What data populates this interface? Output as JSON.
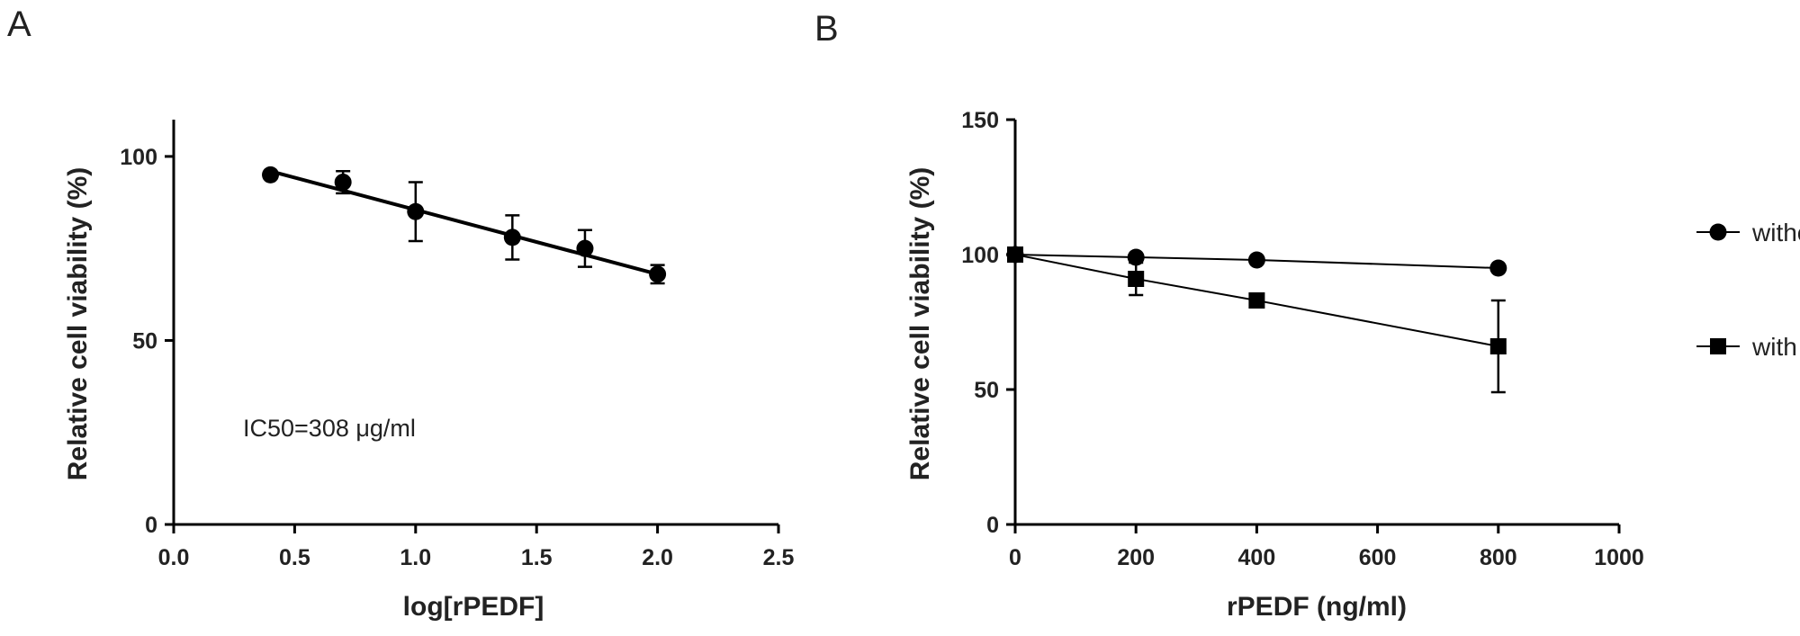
{
  "panels": {
    "a_label": "A",
    "b_label": "B"
  },
  "chart_data": [
    {
      "type": "line",
      "panel": "A",
      "title": "",
      "xlabel": "log[rPEDF]",
      "ylabel": "Relative cell viability (%)",
      "xlim": [
        0,
        2.5
      ],
      "ylim": [
        0,
        110
      ],
      "xticks": [
        "0.0",
        "0.5",
        "1.0",
        "1.5",
        "2.0",
        "2.5"
      ],
      "yticks": [
        "0",
        "50",
        "100"
      ],
      "annotation": "IC50=308 μg/ml",
      "grid": false,
      "series": [
        {
          "marker": "circle",
          "x": [
            0.4,
            0.7,
            1.0,
            1.4,
            1.7,
            2.0
          ],
          "y": [
            95,
            93,
            85,
            78,
            75,
            68
          ],
          "err": [
            1,
            3,
            8,
            6,
            5,
            2.5
          ]
        }
      ],
      "fit_line": {
        "x": [
          0.4,
          2.0
        ],
        "y": [
          96,
          68
        ]
      }
    },
    {
      "type": "line",
      "panel": "B",
      "title": "",
      "xlabel": "rPEDF (ng/ml)",
      "ylabel": "Relative cell viability (%)",
      "xlim": [
        0,
        1000
      ],
      "ylim": [
        0,
        150
      ],
      "xticks": [
        "0",
        "200",
        "400",
        "600",
        "800",
        "1000"
      ],
      "yticks": [
        "0",
        "50",
        "100",
        "150"
      ],
      "grid": false,
      "legend_position": "right",
      "series": [
        {
          "name": "without Ptx",
          "marker": "circle",
          "x": [
            0,
            200,
            400,
            800
          ],
          "y": [
            100,
            99,
            98,
            95
          ],
          "err": [
            0,
            0,
            0,
            0
          ]
        },
        {
          "name": "with Ptx",
          "marker": "square",
          "x": [
            0,
            200,
            400,
            800
          ],
          "y": [
            100,
            91,
            83,
            66
          ],
          "err": [
            0,
            6,
            0,
            17
          ]
        }
      ]
    }
  ]
}
